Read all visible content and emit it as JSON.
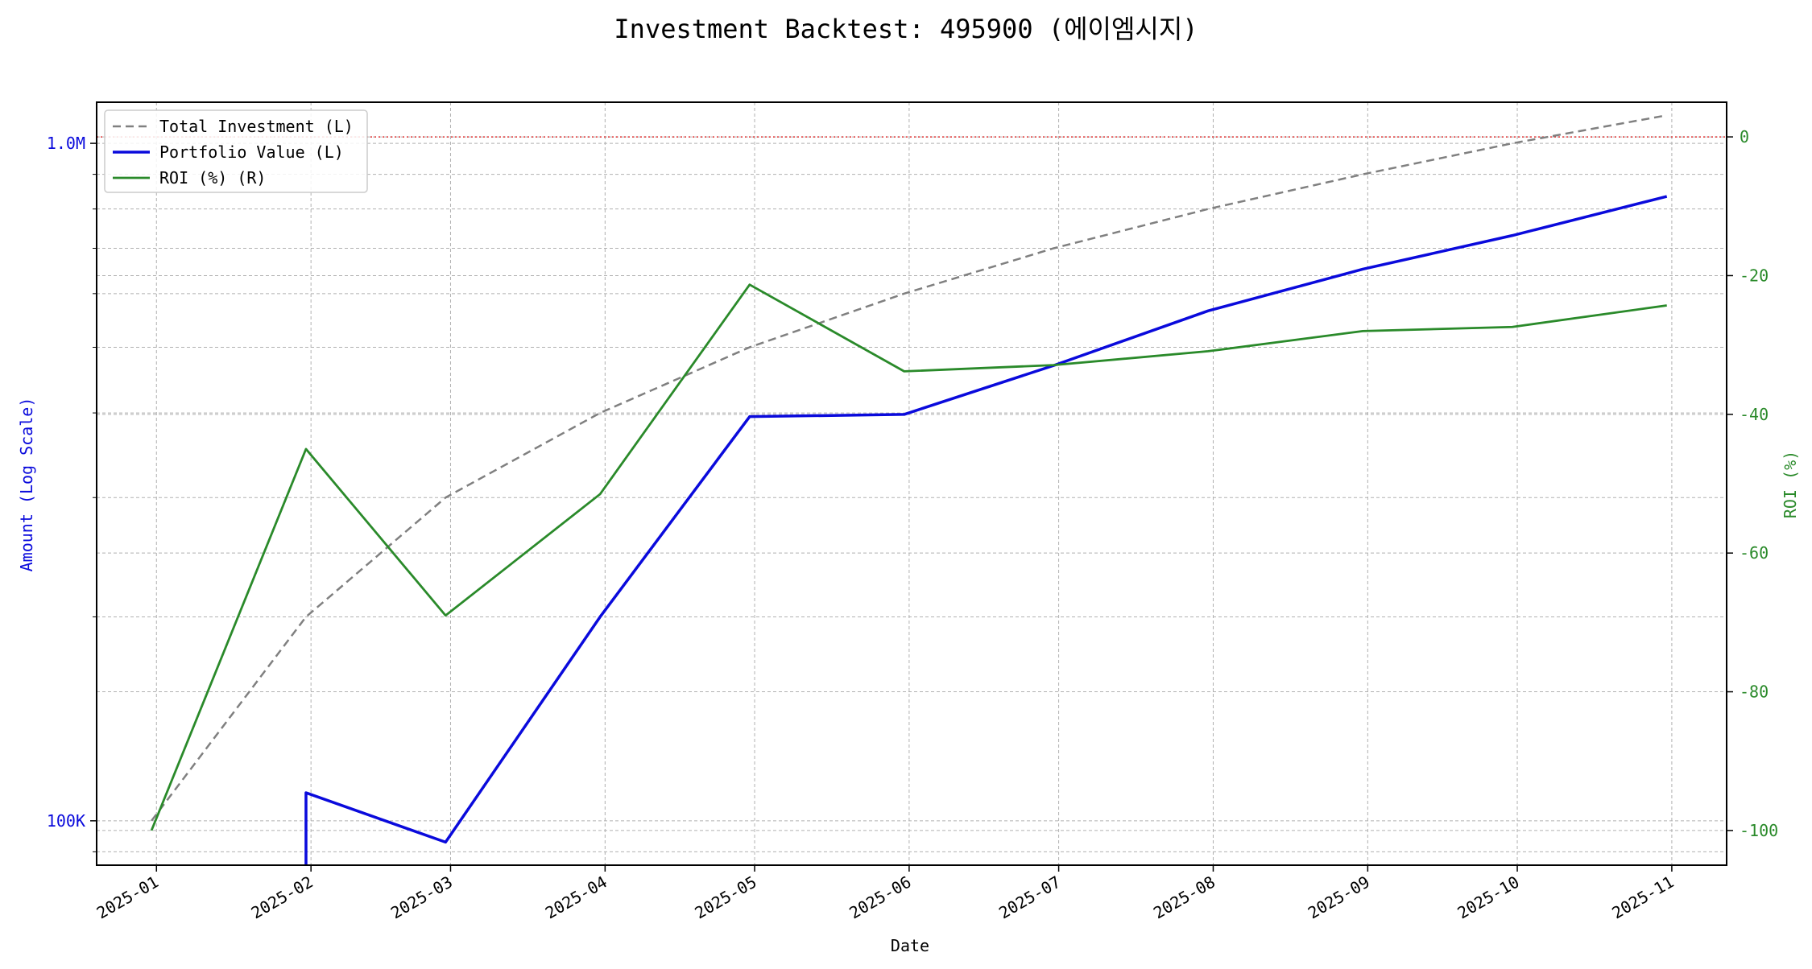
{
  "chart_data": {
    "type": "line",
    "title": "Investment Backtest: 495900 (에이엠시지)",
    "xlabel": "Date",
    "ylabel_left": "Amount (Log Scale)",
    "ylabel_right": "ROI (%)",
    "left_axis": {
      "scale": "log",
      "ylim": [
        86000,
        1150000
      ],
      "ticks": [
        {
          "value": 100000,
          "label": "100K"
        },
        {
          "value": 1000000,
          "label": "1.0M"
        }
      ],
      "minor_ticks": [
        90000,
        200000,
        300000,
        400000,
        500000,
        600000,
        700000,
        800000,
        900000
      ]
    },
    "right_axis": {
      "scale": "linear",
      "ylim": [
        -105,
        5
      ],
      "ticks": [
        0,
        -20,
        -40,
        -60,
        -80,
        -100
      ]
    },
    "x_axis": {
      "range": [
        "2024-12-20",
        "2025-11-12"
      ],
      "ticks": [
        "2025-01",
        "2025-02",
        "2025-03",
        "2025-04",
        "2025-05",
        "2025-06",
        "2025-07",
        "2025-08",
        "2025-09",
        "2025-10",
        "2025-11"
      ]
    },
    "grid": true,
    "legend_position": "top-left",
    "reference_line": {
      "axis": "right",
      "value": 0,
      "color": "#e03030",
      "style": "dotted"
    },
    "series": [
      {
        "name": "Total Investment (L)",
        "axis": "left",
        "color": "#808080",
        "style": "dashed",
        "points": [
          [
            "2024-12-31",
            100000
          ],
          [
            "2025-01-31",
            200000
          ],
          [
            "2025-02-28",
            300000
          ],
          [
            "2025-03-31",
            400000
          ],
          [
            "2025-04-30",
            500000
          ],
          [
            "2025-05-31",
            600000
          ],
          [
            "2025-06-30",
            700000
          ],
          [
            "2025-07-31",
            800000
          ],
          [
            "2025-08-31",
            900000
          ],
          [
            "2025-09-30",
            1000000
          ],
          [
            "2025-10-31",
            1100000
          ]
        ]
      },
      {
        "name": "Portfolio Value (L)",
        "axis": "left",
        "color": "#0a0adc",
        "style": "solid",
        "points": [
          [
            "2025-01-31",
            60000
          ],
          [
            "2025-01-31",
            110000
          ],
          [
            "2025-02-28",
            93000
          ],
          [
            "2025-03-31",
            200000
          ],
          [
            "2025-04-30",
            395000
          ],
          [
            "2025-05-31",
            398000
          ],
          [
            "2025-06-30",
            470000
          ],
          [
            "2025-07-31",
            566000
          ],
          [
            "2025-08-31",
            652000
          ],
          [
            "2025-09-30",
            731000
          ],
          [
            "2025-10-31",
            835000
          ]
        ]
      },
      {
        "name": "ROI (%) (R)",
        "axis": "right",
        "color": "#2a8a2a",
        "style": "solid",
        "points": [
          [
            "2024-12-31",
            -100
          ],
          [
            "2025-01-31",
            -45
          ],
          [
            "2025-02-28",
            -69
          ],
          [
            "2025-03-31",
            -51.5
          ],
          [
            "2025-04-30",
            -21.3
          ],
          [
            "2025-05-31",
            -33.8
          ],
          [
            "2025-06-30",
            -32.9
          ],
          [
            "2025-07-31",
            -30.9
          ],
          [
            "2025-08-31",
            -28
          ],
          [
            "2025-09-30",
            -27.4
          ],
          [
            "2025-10-31",
            -24.3
          ]
        ]
      }
    ]
  }
}
